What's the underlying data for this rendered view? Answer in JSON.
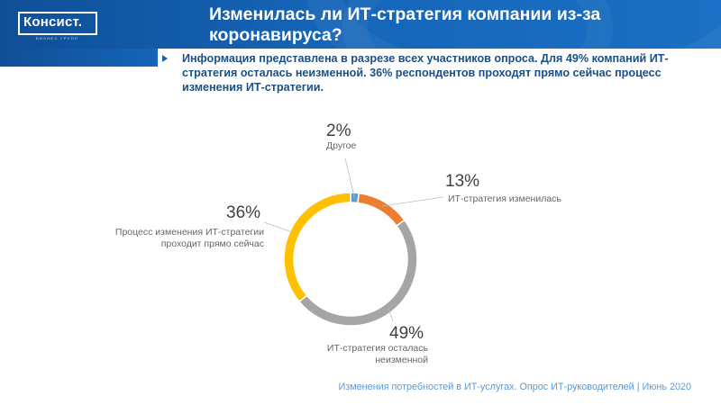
{
  "header": {
    "logo_text": "Консист.",
    "logo_subtext": "БИЗНЕС ГРУПП",
    "title_line1": "Изменилась ли ИТ-стратегия компании из-за",
    "title_line2": "коронавируса?"
  },
  "intro": {
    "text": "Информация представлена в разрезе всех участников опроса. Для 49% компаний ИТ-стратегия осталась неизменной. 36% респондентов проходят прямо сейчас процесс изменения ИТ-стратегии."
  },
  "footer": {
    "text": "Изменения потребностей в ИТ-услугах. Опрос ИТ-руководителей  |  Июнь 2020"
  },
  "chart_data": {
    "type": "pie",
    "variant": "donut",
    "title": "",
    "slices": [
      {
        "label": "Другое",
        "value": 2,
        "pct_label": "2%",
        "color": "#5b9bd5"
      },
      {
        "label": "ИТ-стратегия изменилась",
        "value": 13,
        "pct_label": "13%",
        "color": "#ed7d31"
      },
      {
        "label_line1": "ИТ-стратегия осталась",
        "label_line2": "неизменной",
        "value": 49,
        "pct_label": "49%",
        "color": "#a5a5a5"
      },
      {
        "label_line1": "Процесс изменения ИТ-стратегии",
        "label_line2": "проходит прямо сейчас",
        "value": 36,
        "pct_label": "36%",
        "color": "#ffc000"
      }
    ]
  }
}
